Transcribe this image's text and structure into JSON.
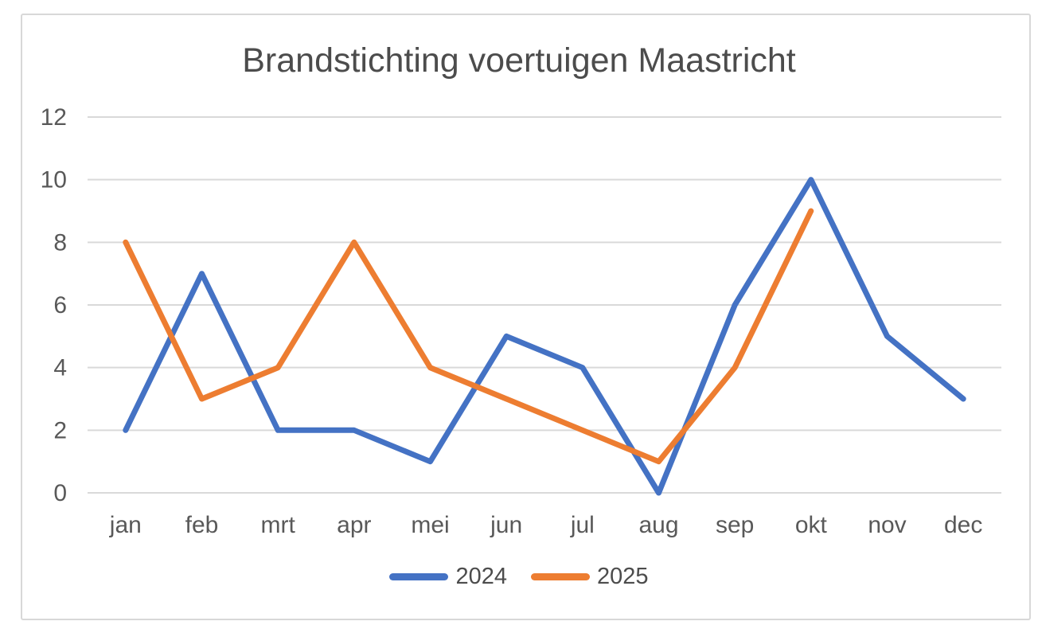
{
  "window": {
    "background": "#ffffff",
    "frame_border_color": "#d8d8d8"
  },
  "chart_data": {
    "type": "line",
    "title": "Brandstichting voertuigen Maastricht",
    "categories": [
      "jan",
      "feb",
      "mrt",
      "apr",
      "mei",
      "jun",
      "jul",
      "aug",
      "sep",
      "okt",
      "nov",
      "dec"
    ],
    "series": [
      {
        "name": "2024",
        "color": "#4472C4",
        "values": [
          2,
          7,
          2,
          2,
          1,
          5,
          4,
          0,
          6,
          10,
          5,
          3
        ]
      },
      {
        "name": "2025",
        "color": "#ED7D31",
        "values": [
          8,
          3,
          4,
          8,
          4,
          3,
          2,
          1,
          4,
          9,
          null,
          null
        ]
      }
    ],
    "ylim": [
      0,
      12
    ],
    "y_ticks": [
      0,
      2,
      4,
      6,
      8,
      10,
      12
    ],
    "grid": true,
    "gridline_color": "#D9D9D9",
    "axis_text_color": "#595959",
    "title_color": "#4C4C4C",
    "legend_position": "bottom"
  }
}
